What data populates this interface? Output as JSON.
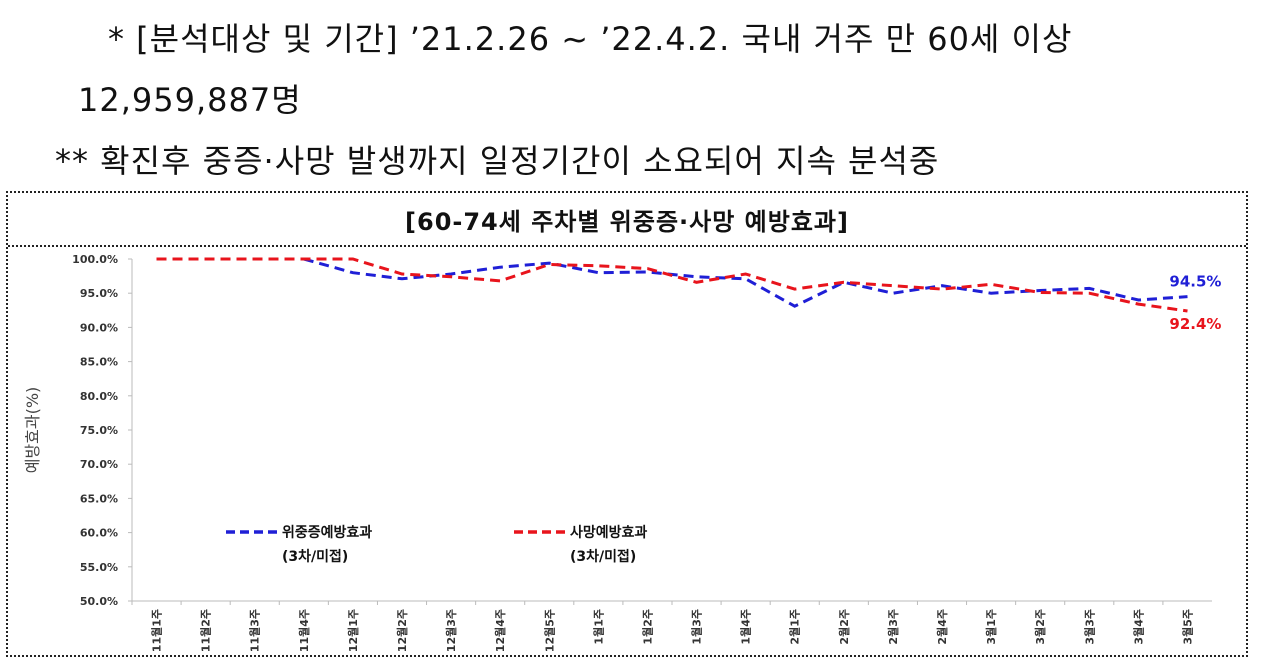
{
  "notes": {
    "line1": "* [분석대상 및 기간] ’21.2.26 ~ ’22.4.2. 국내 거주 만 60세 이상",
    "line1b": "12,959,887명",
    "line2": "** 확진후 중증·사망 발생까지 일정기간이 소요되어 지속 분석중"
  },
  "chart_data": {
    "type": "line",
    "title": "[60-74세 주차별 위중증·사망 예방효과]",
    "ylabel": "예방효과(%)",
    "ylim": [
      50,
      100
    ],
    "yticks": [
      "100.0%",
      "95.0%",
      "90.0%",
      "85.0%",
      "80.0%",
      "75.0%",
      "70.0%",
      "65.0%",
      "60.0%",
      "55.0%",
      "50.0%"
    ],
    "categories": [
      "11월1주",
      "11월2주",
      "11월3주",
      "11월4주",
      "12월1주",
      "12월2주",
      "12월3주",
      "12월4주",
      "12월5주",
      "1월1주",
      "1월2주",
      "1월3주",
      "1월4주",
      "2월1주",
      "2월2주",
      "2월3주",
      "2월4주",
      "3월1주",
      "3월2주",
      "3월3주",
      "3월4주",
      "3월5주"
    ],
    "series": [
      {
        "name": "위중증예방효과",
        "note": "(3차/미접)",
        "color": "#1f1fd6",
        "values": [
          null,
          null,
          null,
          100.0,
          98.0,
          97.1,
          97.8,
          98.8,
          99.4,
          98.0,
          98.1,
          97.4,
          97.1,
          93.1,
          96.6,
          95.0,
          96.1,
          95.0,
          95.4,
          95.7,
          94.0,
          94.5
        ],
        "end_label": "94.5%"
      },
      {
        "name": "사망예방효과",
        "note": "(3차/미접)",
        "color": "#e8141c",
        "values": [
          100.0,
          100.0,
          100.0,
          100.0,
          100.0,
          97.8,
          97.4,
          96.8,
          99.2,
          99.0,
          98.6,
          96.6,
          97.8,
          95.6,
          96.6,
          96.1,
          95.6,
          96.3,
          95.1,
          95.0,
          93.4,
          92.4
        ],
        "end_label": "92.4%"
      }
    ]
  }
}
